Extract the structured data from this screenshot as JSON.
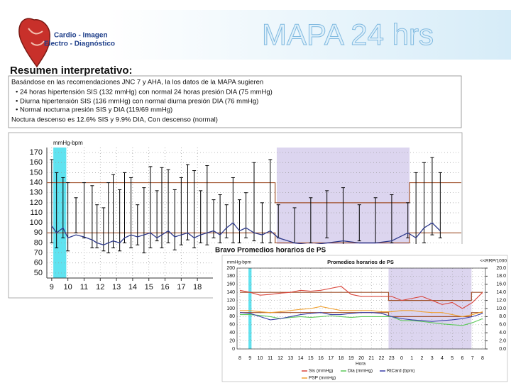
{
  "header": {
    "brand_line1": "Cardio - Imagen",
    "brand_line2": "Electro - Diagnóstico",
    "title": "MAPA 24 hrs"
  },
  "summary": {
    "heading": "Resumen interpretativo:",
    "intro": "Basándose en las recomendaciones JNC 7 y AHA, la los datos de la MAPA sugieren",
    "bullets": [
      "• 24 horas hipertensión SIS (132 mmHg) con normal 24 horas presión DIA (75 mmHg)",
      "• Diurna hipertensión SIS (136 mmHg) con normal diurna presión DIA (76 mmHg)",
      "• Normal nocturna presión SIS y DIA (119/69 mmHg)"
    ],
    "conclusion": "Noctura descenso es 12.6% SIS y 9.9% DIA, Con descenso (normal)"
  },
  "chart_data": [
    {
      "type": "range",
      "ylabel": "mmHg-bpm",
      "x": [
        9.0,
        9.3,
        9.7,
        10.0,
        10.5,
        11.0,
        11.5,
        11.8,
        12.2,
        12.5,
        12.8,
        13.2,
        13.5,
        13.9,
        14.3,
        14.7,
        15.1,
        15.5,
        15.8,
        16.2,
        16.6,
        17.0,
        17.4,
        17.8,
        18.2,
        18.6,
        19.0,
        19.4,
        19.8,
        20.2,
        20.6,
        21.0,
        21.5,
        22.0,
        22.5,
        23.0,
        24.0,
        25.0,
        26.0,
        27.0,
        28.0,
        29.0,
        30.0,
        31.0,
        31.5,
        32.0,
        32.5,
        33.0
      ],
      "high": [
        163,
        150,
        145,
        140,
        125,
        140,
        137,
        118,
        115,
        140,
        148,
        133,
        150,
        145,
        118,
        135,
        156,
        132,
        155,
        153,
        133,
        145,
        158,
        152,
        132,
        157,
        123,
        128,
        118,
        145,
        123,
        130,
        160,
        120,
        163,
        118,
        115,
        125,
        132,
        135,
        118,
        125,
        128,
        120,
        150,
        160,
        165,
        150
      ],
      "low": [
        80,
        75,
        85,
        72,
        90,
        85,
        75,
        75,
        72,
        70,
        75,
        72,
        80,
        75,
        78,
        70,
        75,
        82,
        75,
        80,
        73,
        78,
        83,
        75,
        80,
        78,
        85,
        80,
        85,
        80,
        80,
        85,
        82,
        80,
        80,
        85,
        80,
        80,
        85,
        75,
        82,
        80,
        80,
        85,
        72,
        80,
        88,
        85
      ],
      "mean": [
        97,
        90,
        95,
        85,
        88,
        86,
        83,
        80,
        78,
        80,
        82,
        80,
        85,
        88,
        86,
        88,
        90,
        85,
        88,
        92,
        86,
        88,
        90,
        85,
        88,
        90,
        92,
        88,
        95,
        100,
        92,
        95,
        90,
        88,
        92,
        85,
        80,
        78,
        80,
        82,
        80,
        80,
        82,
        90,
        85,
        95,
        100,
        92
      ],
      "range_color": "#000000",
      "mean_color": "#2e3a8c",
      "limits": [
        {
          "color": "#a0522d",
          "x": [
            8.7,
            22.8,
            22.8,
            31.1,
            31.1,
            34.3
          ],
          "values": [
            140,
            140,
            120,
            120,
            140,
            140
          ]
        },
        {
          "color": "#a0522d",
          "x": [
            8.7,
            22.8,
            22.8,
            31.1,
            31.1,
            34.3
          ],
          "values": [
            90,
            90,
            80,
            80,
            90,
            90
          ]
        }
      ],
      "shading": [
        {
          "from": 9.1,
          "to": 9.9,
          "color": "#5fe3f0"
        },
        {
          "from": 22.9,
          "to": 31.1,
          "color": "#dcd5ef"
        }
      ],
      "xlim": [
        8.7,
        34.3
      ],
      "xticks": [
        9,
        10,
        11,
        12,
        13,
        14,
        15,
        16,
        17,
        18
      ],
      "ylim": [
        45,
        175
      ],
      "yticks": [
        50,
        60,
        70,
        80,
        90,
        100,
        110,
        120,
        130,
        140,
        150,
        160,
        170
      ],
      "grid": true
    },
    {
      "type": "line",
      "caption": "Bravo Promedios horarios de PS",
      "title": "Promedios horarios de PS",
      "ylabel": "mmHg-bpm",
      "y2label": "<<RRP/1000",
      "xlabel": "Hora",
      "categories": [
        "8",
        "9",
        "10",
        "11",
        "12",
        "13",
        "14",
        "15",
        "16",
        "17",
        "18",
        "19",
        "20",
        "21",
        "22",
        "23",
        "0",
        "1",
        "2",
        "3",
        "4",
        "5",
        "6",
        "7",
        "8"
      ],
      "series": [
        {
          "name": "Sis (mmHg)",
          "color": "#d9443a",
          "values": [
            145,
            140,
            133,
            135,
            138,
            140,
            145,
            143,
            145,
            150,
            155,
            135,
            130,
            130,
            130,
            130,
            120,
            125,
            130,
            120,
            110,
            115,
            100,
            115,
            140
          ]
        },
        {
          "name": "Dia (mmHg)",
          "color": "#5cc95a",
          "values": [
            85,
            85,
            83,
            80,
            75,
            78,
            80,
            78,
            80,
            82,
            80,
            78,
            80,
            80,
            80,
            80,
            70,
            70,
            68,
            65,
            62,
            60,
            58,
            65,
            75
          ]
        },
        {
          "name": "RtCard (bpm)",
          "color": "#3a3fa8",
          "values": [
            90,
            88,
            80,
            72,
            75,
            80,
            85,
            88,
            90,
            85,
            85,
            88,
            90,
            90,
            88,
            80,
            75,
            72,
            70,
            68,
            70,
            72,
            75,
            80,
            88
          ]
        },
        {
          "name": "PSP (mmHg)",
          "color": "#f0a030",
          "values": [
            95,
            95,
            92,
            90,
            92,
            95,
            98,
            100,
            105,
            100,
            95,
            95,
            95,
            95,
            92,
            92,
            95,
            95,
            92,
            90,
            90,
            85,
            80,
            85,
            92
          ]
        }
      ],
      "limits": [
        {
          "color": "#a0522d",
          "x": [
            0,
            14.7,
            14.7,
            22.9,
            22.9,
            24
          ],
          "values": [
            140,
            140,
            120,
            120,
            140,
            140
          ]
        },
        {
          "color": "#a0522d",
          "x": [
            0,
            14.7,
            14.7,
            22.9,
            22.9,
            24
          ],
          "values": [
            90,
            90,
            80,
            80,
            90,
            90
          ]
        }
      ],
      "shading": [
        {
          "from": 0.85,
          "to": 1.15,
          "color": "#5fe3f0"
        },
        {
          "from": 14.7,
          "to": 22.9,
          "color": "#dcd5ef"
        }
      ],
      "ylim": [
        0,
        200
      ],
      "yticks": [
        0,
        20,
        40,
        60,
        80,
        100,
        120,
        140,
        160,
        180,
        200
      ],
      "y2lim": [
        0,
        20
      ],
      "y2ticks": [
        {
          "value": 0,
          "label": "0.0"
        },
        {
          "value": 2,
          "label": "2.0"
        },
        {
          "value": 4,
          "label": "4.0"
        },
        {
          "value": 6,
          "label": "6.0"
        },
        {
          "value": 8,
          "label": "8.0"
        },
        {
          "value": 10,
          "label": "10.0"
        },
        {
          "value": 12,
          "label": "12.0"
        },
        {
          "value": 14,
          "label": "14.0"
        },
        {
          "value": 16,
          "label": "16.0"
        },
        {
          "value": 18,
          "label": "18.0"
        },
        {
          "value": 20,
          "label": "20.0"
        }
      ],
      "grid": true
    }
  ]
}
